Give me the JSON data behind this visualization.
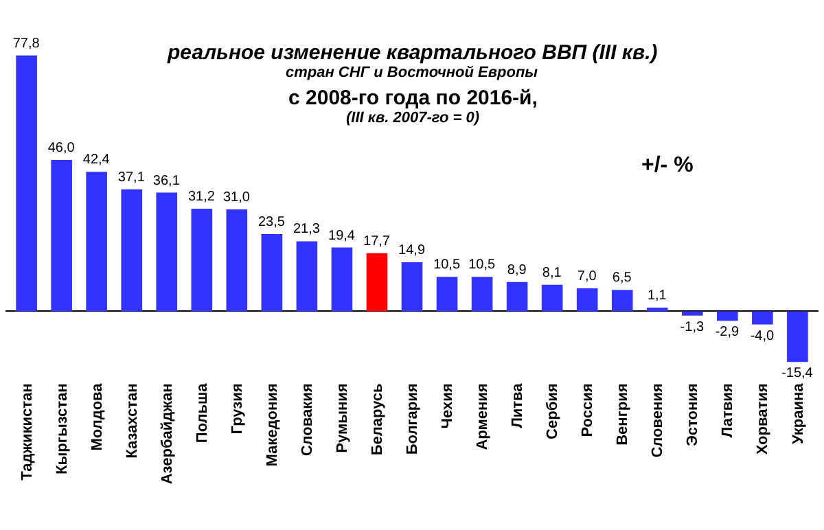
{
  "chart_data": {
    "type": "bar",
    "title": "реальное изменение квартального ВВП (III кв.)",
    "subtitle": "стран СНГ и Восточной Европы\nс 2008-го года по 2016-й,\n(III кв. 2007-го = 0)",
    "annotations": [
      "+/- %"
    ],
    "categories": [
      "Таджикистан",
      "Кыргызстан",
      "Молдова",
      "Казахстан",
      "Азербайджан",
      "Польша",
      "Грузия",
      "Македония",
      "Словакия",
      "Румыния",
      "Беларусь",
      "Болгария",
      "Чехия",
      "Армения",
      "Литва",
      "Сербия",
      "Россия",
      "Венгрия",
      "Словения",
      "Эстония",
      "Латвия",
      "Хорватия",
      "Украина"
    ],
    "values": [
      77.8,
      46.0,
      42.4,
      37.1,
      36.1,
      31.2,
      31.0,
      23.5,
      21.3,
      19.4,
      17.7,
      14.9,
      10.5,
      10.5,
      8.9,
      8.1,
      7.0,
      6.5,
      1.1,
      -1.3,
      -2.9,
      -4.0,
      -15.4
    ],
    "value_labels": [
      "77,8",
      "46,0",
      "42,4",
      "37,1",
      "36,1",
      "31,2",
      "31,0",
      "23,5",
      "21,3",
      "19,4",
      "17,7",
      "14,9",
      "10,5",
      "10,5",
      "8,9",
      "8,1",
      "7,0",
      "6,5",
      "1,1",
      "-1,3",
      "-2,9",
      "-4,0",
      "-15,4"
    ],
    "colors": [
      "#3333ff",
      "#3333ff",
      "#3333ff",
      "#3333ff",
      "#3333ff",
      "#3333ff",
      "#3333ff",
      "#3333ff",
      "#3333ff",
      "#3333ff",
      "#ff0000",
      "#3333ff",
      "#3333ff",
      "#3333ff",
      "#3333ff",
      "#3333ff",
      "#3333ff",
      "#3333ff",
      "#3333ff",
      "#3333ff",
      "#3333ff",
      "#3333ff",
      "#3333ff"
    ]
  }
}
